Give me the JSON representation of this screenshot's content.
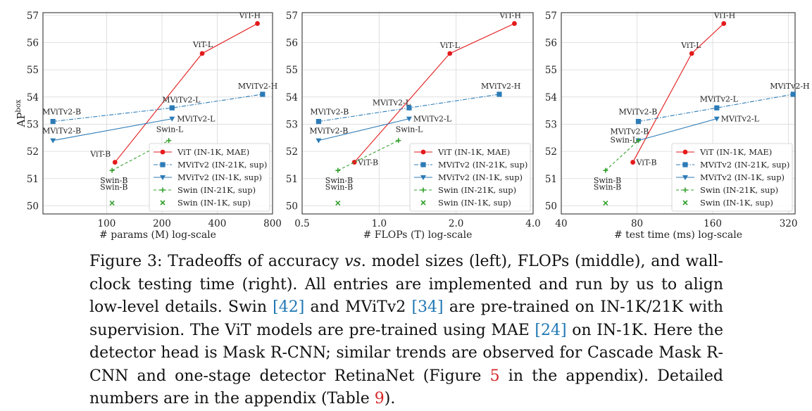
{
  "chart_data": [
    {
      "type": "line",
      "xlabel": "# params (M) log-scale",
      "ylabel": "AP",
      "ylabel_sup": "box",
      "xscale": "log",
      "xlim": [
        45,
        800
      ],
      "xticks": [
        100,
        200,
        400,
        800
      ],
      "xtick_labels": [
        "100",
        "200",
        "400",
        "800"
      ],
      "ylim": [
        49.7,
        57.1
      ],
      "yticks": [
        50,
        51,
        52,
        53,
        54,
        55,
        56,
        57
      ],
      "ytick_labels": [
        "50",
        "51",
        "52",
        "53",
        "54",
        "55",
        "56",
        "57"
      ],
      "grid": true,
      "legend_position": "lower-right",
      "series": [
        {
          "name": "ViT (IN-1K, MAE)",
          "color": "#e31a1c",
          "marker": "circle",
          "dash": "solid",
          "x": [
            111,
            331,
            662
          ],
          "y": [
            51.6,
            55.6,
            56.7
          ],
          "labels": [
            "ViT-B",
            "ViT-L",
            "ViT-H"
          ]
        },
        {
          "name": "MViTv2 (IN-21K, sup)",
          "color": "#2c7bb6",
          "marker": "square",
          "dash": "dashdot",
          "x": [
            51,
            227,
            706
          ],
          "y": [
            53.1,
            53.6,
            54.1
          ],
          "labels": [
            "MViTv2-B",
            "MViTv2-L",
            "MViTv2-H"
          ]
        },
        {
          "name": "MViTv2 (IN-1K, sup)",
          "color": "#2c7bb6",
          "marker": "triangle-down",
          "dash": "solid",
          "x": [
            51,
            227
          ],
          "y": [
            52.4,
            53.2
          ],
          "labels": [
            "MViTv2-B",
            "MViTv2-L"
          ]
        },
        {
          "name": "Swin (IN-21K, sup)",
          "color": "#33a02c",
          "marker": "plus",
          "dash": "dashed",
          "x": [
            107,
            218
          ],
          "y": [
            51.3,
            52.4
          ],
          "labels": [
            "Swin-B",
            "Swin-L"
          ]
        },
        {
          "name": "Swin (IN-1K, sup)",
          "color": "#33a02c",
          "marker": "x",
          "dash": "none",
          "x": [
            107
          ],
          "y": [
            50.1
          ],
          "labels": [
            "Swin-B"
          ]
        }
      ]
    },
    {
      "type": "line",
      "xlabel": "# FLOPs (T) log-scale",
      "xscale": "log",
      "xlim": [
        0.5,
        4.0
      ],
      "xticks": [
        0.5,
        1.0,
        2.0,
        4.0
      ],
      "xtick_labels": [
        "0.5",
        "1.0",
        "2.0",
        "4.0"
      ],
      "ylim": [
        49.7,
        57.1
      ],
      "yticks": [
        50,
        51,
        52,
        53,
        54,
        55,
        56,
        57
      ],
      "ytick_labels": [
        "50",
        "51",
        "52",
        "53",
        "54",
        "55",
        "56",
        "57"
      ],
      "grid": true,
      "legend_position": "lower-right",
      "series": [
        {
          "name": "ViT (IN-1K, MAE)",
          "color": "#e31a1c",
          "marker": "circle",
          "dash": "solid",
          "x": [
            0.8,
            1.89,
            3.38
          ],
          "y": [
            51.6,
            55.6,
            56.7
          ],
          "labels": [
            "ViT-B",
            "ViT-L",
            "ViT-H"
          ]
        },
        {
          "name": "MViTv2 (IN-21K, sup)",
          "color": "#2c7bb6",
          "marker": "square",
          "dash": "dashdot",
          "x": [
            0.58,
            1.31,
            2.95
          ],
          "y": [
            53.1,
            53.6,
            54.1
          ],
          "labels": [
            "MViTv2-B",
            "MViTv2-L",
            "MViTv2-H"
          ]
        },
        {
          "name": "MViTv2 (IN-1K, sup)",
          "color": "#2c7bb6",
          "marker": "triangle-down",
          "dash": "solid",
          "x": [
            0.58,
            1.31
          ],
          "y": [
            52.4,
            53.2
          ],
          "labels": [
            "MViTv2-B",
            "MViTv2-L"
          ]
        },
        {
          "name": "Swin (IN-21K, sup)",
          "color": "#33a02c",
          "marker": "plus",
          "dash": "dashed",
          "x": [
            0.69,
            1.19
          ],
          "y": [
            51.3,
            52.4
          ],
          "labels": [
            "Swin-B",
            "Swin-L"
          ]
        },
        {
          "name": "Swin (IN-1K, sup)",
          "color": "#33a02c",
          "marker": "x",
          "dash": "none",
          "x": [
            0.69
          ],
          "y": [
            50.1
          ],
          "labels": [
            "Swin-B"
          ]
        }
      ]
    },
    {
      "type": "line",
      "xlabel": "# test time (ms) log-scale",
      "xscale": "log",
      "xlim": [
        40,
        340
      ],
      "xticks": [
        40,
        80,
        160,
        320
      ],
      "xtick_labels": [
        "40",
        "80",
        "160",
        "320"
      ],
      "ylim": [
        49.7,
        57.1
      ],
      "yticks": [
        50,
        51,
        52,
        53,
        54,
        55,
        56,
        57
      ],
      "ytick_labels": [
        "50",
        "51",
        "52",
        "53",
        "54",
        "55",
        "56",
        "57"
      ],
      "grid": true,
      "legend_position": "lower-right",
      "series": [
        {
          "name": "ViT (IN-1K, MAE)",
          "color": "#e31a1c",
          "marker": "circle",
          "dash": "solid",
          "x": [
            77,
            132,
            177
          ],
          "y": [
            51.6,
            55.6,
            56.7
          ],
          "labels": [
            "ViT-B",
            "ViT-L",
            "ViT-H"
          ]
        },
        {
          "name": "MViTv2 (IN-21K, sup)",
          "color": "#2c7bb6",
          "marker": "square",
          "dash": "dashdot",
          "x": [
            81,
            166,
            334
          ],
          "y": [
            53.1,
            53.6,
            54.1
          ],
          "labels": [
            "MViTv2-B",
            "MViTv2-L",
            "MViTv2-H"
          ]
        },
        {
          "name": "MViTv2 (IN-1K, sup)",
          "color": "#2c7bb6",
          "marker": "triangle-down",
          "dash": "solid",
          "x": [
            81,
            166
          ],
          "y": [
            52.4,
            53.2
          ],
          "labels": [
            "MViTv2-B",
            "MViTv2-L"
          ]
        },
        {
          "name": "Swin (IN-21K, sup)",
          "color": "#33a02c",
          "marker": "plus",
          "dash": "dashed",
          "x": [
            60,
            81
          ],
          "y": [
            51.3,
            52.4
          ],
          "labels": [
            "Swin-B",
            "Swin-L"
          ]
        },
        {
          "name": "Swin (IN-1K, sup)",
          "color": "#33a02c",
          "marker": "x",
          "dash": "none",
          "x": [
            60
          ],
          "y": [
            50.1
          ],
          "labels": [
            "Swin-B"
          ]
        }
      ]
    }
  ],
  "caption": {
    "figure_label": "Figure 3:",
    "t1": " Tradeoffs of accuracy ",
    "vs": "vs",
    "t2": ". model sizes (left), FLOPs (middle), and wall-clock testing time (right). All entries are implemented and run by us to align low-level details. Swin ",
    "cite1": "[42]",
    "t3": " and MViTv2 ",
    "cite2": "[34]",
    "t4": " are pre-trained on IN-1K/21K with supervision. The ViT models are pre-trained using MAE ",
    "cite3": "[24]",
    "t5": " on IN-1K. Here the detector head is Mask R-CNN; similar trends are observed for Cascade Mask R-CNN and one-stage detector RetinaNet (Figure ",
    "ref1": "5",
    "t6": " in the appendix). Detailed numbers are in the appendix (Table ",
    "ref2": "9",
    "t7": ")."
  }
}
